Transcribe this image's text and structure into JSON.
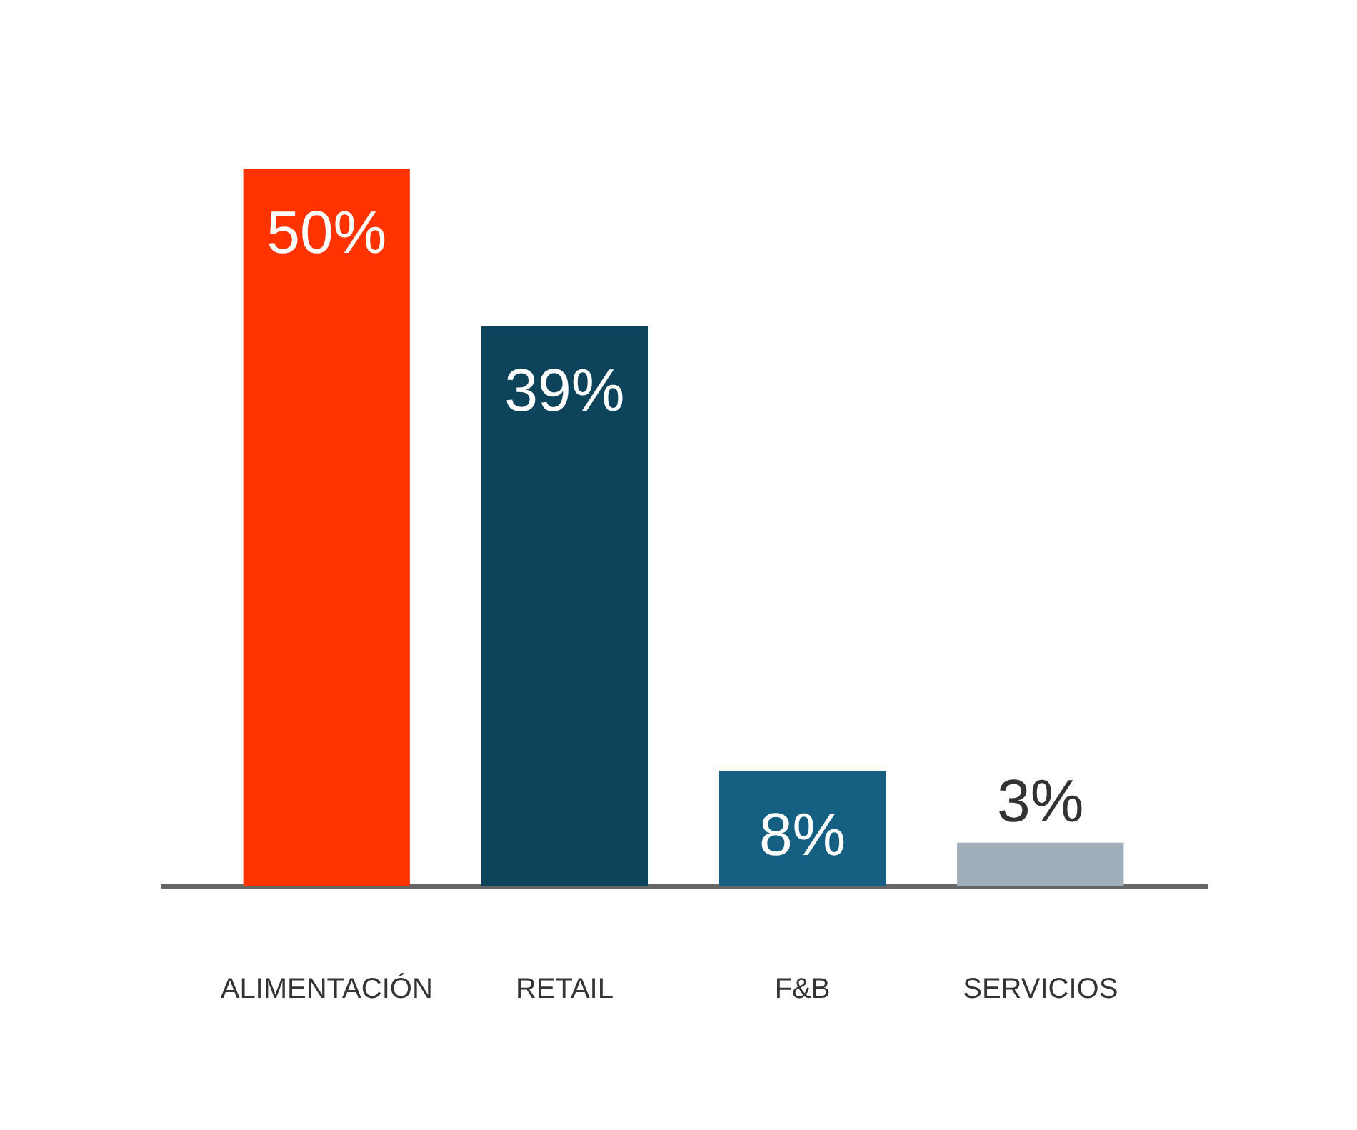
{
  "chart_data": {
    "type": "bar",
    "categories": [
      "ALIMENTACIÓN",
      "RETAIL",
      "F&B",
      "SERVICIOS"
    ],
    "values": [
      50,
      39,
      8,
      3
    ],
    "colors": [
      "#ff3300",
      "#0e435c",
      "#155f82",
      "#a0aeba"
    ],
    "value_labels": [
      "50%",
      "39%",
      "8%",
      "3%"
    ]
  }
}
